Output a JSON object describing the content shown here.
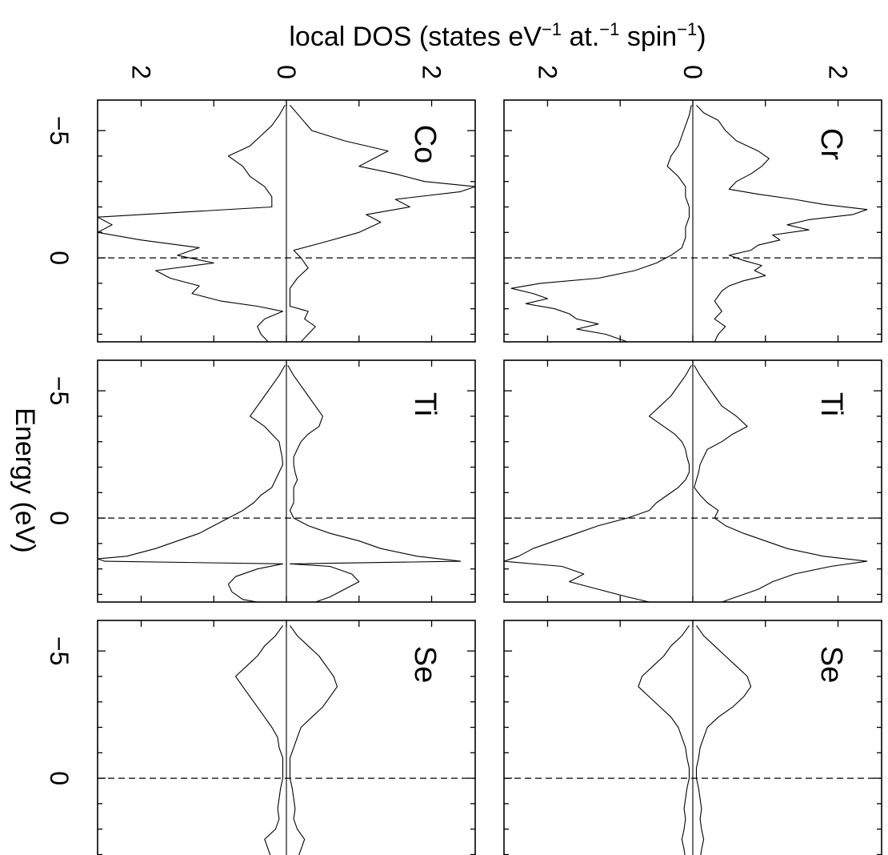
{
  "chart_data": {
    "type": "line",
    "orientation": "rotated-90-cw",
    "title": "",
    "xlabel": "Energy (eV)",
    "ylabel_parts": {
      "t1": "local DOS (states eV",
      "s1": "−1",
      "t2": " at.",
      "s2": "−1",
      "t3": " spin",
      "s3": "−1",
      "t4": ")"
    },
    "x_tick_labels": [
      "−5",
      "0"
    ],
    "y_tick_labels": [
      "2",
      "0",
      "2"
    ],
    "xlim": [
      -6.2,
      3.3
    ],
    "ylim": [
      -2.6,
      2.6
    ],
    "fermi_level": 0,
    "panels": [
      {
        "label": "Cr",
        "grid_row": 0,
        "grid_col": 1,
        "series": [
          {
            "spin": "up",
            "x": [
              -6.0,
              -5.7,
              -5.4,
              -5.0,
              -4.6,
              -4.2,
              -3.9,
              -3.6,
              -3.3,
              -3.0,
              -2.7,
              -2.5,
              -2.3,
              -2.1,
              -1.9,
              -1.7,
              -1.5,
              -1.3,
              -1.1,
              -0.9,
              -0.7,
              -0.5,
              -0.3,
              -0.1,
              0.1,
              0.3,
              0.5,
              0.7,
              0.9,
              1.1,
              1.3,
              1.5,
              1.7,
              1.9,
              2.1,
              2.4,
              2.7,
              3.0,
              3.3
            ],
            "values": [
              0.05,
              0.15,
              0.35,
              0.45,
              0.6,
              0.9,
              1.05,
              0.95,
              0.8,
              0.6,
              0.5,
              0.9,
              1.4,
              1.8,
              2.4,
              2.2,
              1.6,
              1.3,
              1.6,
              1.1,
              1.2,
              0.9,
              0.8,
              0.5,
              0.7,
              0.95,
              0.85,
              1.0,
              0.7,
              0.5,
              0.4,
              0.35,
              0.3,
              0.35,
              0.4,
              0.3,
              0.45,
              0.35,
              0.3
            ]
          },
          {
            "spin": "down",
            "x": [
              -6.0,
              -5.6,
              -5.2,
              -4.8,
              -4.4,
              -4.0,
              -3.6,
              -3.2,
              -2.8,
              -2.4,
              -2.0,
              -1.6,
              -1.2,
              -0.8,
              -0.4,
              -0.1,
              0.2,
              0.5,
              0.8,
              1.0,
              1.2,
              1.4,
              1.6,
              1.8,
              2.0,
              2.2,
              2.4,
              2.6,
              2.8,
              3.0,
              3.3
            ],
            "values": [
              0.02,
              0.05,
              0.1,
              0.15,
              0.2,
              0.3,
              0.35,
              0.2,
              0.1,
              0.1,
              0.05,
              0.05,
              0.1,
              0.1,
              0.15,
              0.3,
              0.5,
              0.8,
              1.3,
              2.1,
              2.5,
              2.2,
              2.0,
              2.3,
              1.9,
              1.7,
              1.6,
              1.3,
              1.6,
              1.2,
              0.9
            ]
          }
        ]
      },
      {
        "label": "Co",
        "grid_row": 0,
        "grid_col": 0,
        "series": [
          {
            "spin": "up",
            "x": [
              -6.0,
              -5.5,
              -5.0,
              -4.6,
              -4.2,
              -3.9,
              -3.6,
              -3.3,
              -3.0,
              -2.8,
              -2.6,
              -2.3,
              -2.0,
              -1.7,
              -1.4,
              -1.0,
              -0.6,
              -0.3,
              0.0,
              0.4,
              0.8,
              1.2,
              1.6,
              1.9,
              2.1,
              2.4,
              2.7,
              3.0,
              3.3
            ],
            "values": [
              0.05,
              0.2,
              0.35,
              0.8,
              1.4,
              1.2,
              1.0,
              1.5,
              1.9,
              2.6,
              2.4,
              1.5,
              1.7,
              1.1,
              1.3,
              1.0,
              0.5,
              0.1,
              0.2,
              0.3,
              0.15,
              0.05,
              0.05,
              0.05,
              0.3,
              0.25,
              0.4,
              0.3,
              0.2
            ]
          },
          {
            "spin": "down",
            "x": [
              -6.0,
              -5.6,
              -5.2,
              -4.8,
              -4.4,
              -4.0,
              -3.6,
              -3.2,
              -2.8,
              -2.4,
              -2.0,
              -1.6,
              -1.3,
              -1.0,
              -0.7,
              -0.4,
              -0.1,
              0.2,
              0.5,
              0.8,
              1.1,
              1.4,
              1.7,
              1.9,
              2.1,
              2.4,
              2.7,
              3.0,
              3.3
            ],
            "values": [
              0.02,
              0.1,
              0.2,
              0.35,
              0.5,
              0.8,
              0.6,
              0.5,
              0.3,
              0.2,
              0.2,
              2.6,
              2.4,
              2.6,
              2.0,
              1.2,
              1.5,
              1.0,
              1.8,
              1.6,
              1.2,
              1.3,
              0.9,
              0.4,
              0.05,
              0.3,
              0.4,
              0.35,
              0.25
            ]
          }
        ]
      },
      {
        "label": "Ti",
        "grid_row": 1,
        "grid_col": 1,
        "series": [
          {
            "spin": "up",
            "x": [
              -6.0,
              -5.6,
              -5.2,
              -4.8,
              -4.4,
              -4.0,
              -3.6,
              -3.3,
              -3.0,
              -2.7,
              -2.4,
              -2.1,
              -1.8,
              -1.5,
              -1.2,
              -0.9,
              -0.6,
              -0.3,
              0.0,
              0.3,
              0.6,
              0.9,
              1.2,
              1.5,
              1.7,
              1.9,
              2.2,
              2.5,
              2.8,
              3.1,
              3.3
            ],
            "values": [
              0.02,
              0.1,
              0.2,
              0.3,
              0.4,
              0.6,
              0.75,
              0.55,
              0.4,
              0.2,
              0.15,
              0.1,
              0.08,
              0.05,
              0.02,
              0.1,
              0.2,
              0.35,
              0.3,
              0.45,
              0.7,
              1.0,
              1.3,
              1.8,
              2.4,
              1.9,
              1.4,
              1.1,
              0.9,
              0.6,
              0.4
            ]
          },
          {
            "spin": "down",
            "x": [
              -6.0,
              -5.6,
              -5.2,
              -4.8,
              -4.4,
              -4.0,
              -3.6,
              -3.3,
              -3.0,
              -2.7,
              -2.4,
              -2.1,
              -1.8,
              -1.5,
              -1.2,
              -0.9,
              -0.6,
              -0.3,
              0.0,
              0.3,
              0.6,
              0.9,
              1.2,
              1.5,
              1.7,
              1.9,
              2.2,
              2.5,
              2.8,
              3.1,
              3.3
            ],
            "values": [
              0.02,
              0.1,
              0.2,
              0.3,
              0.45,
              0.6,
              0.4,
              0.25,
              0.15,
              0.1,
              0.08,
              0.05,
              0.05,
              0.1,
              0.2,
              0.35,
              0.5,
              0.6,
              0.9,
              1.3,
              1.6,
              1.9,
              2.2,
              2.4,
              2.6,
              1.8,
              1.5,
              1.7,
              1.3,
              0.9,
              0.6
            ]
          }
        ]
      },
      {
        "label": "Ti",
        "grid_row": 1,
        "grid_col": 0,
        "series": [
          {
            "spin": "up",
            "x": [
              -6.0,
              -5.6,
              -5.2,
              -4.8,
              -4.4,
              -4.0,
              -3.6,
              -3.3,
              -3.0,
              -2.7,
              -2.4,
              -2.1,
              -1.8,
              -1.5,
              -1.2,
              -0.9,
              -0.6,
              -0.3,
              0.0,
              0.3,
              0.6,
              0.9,
              1.2,
              1.5,
              1.7,
              1.8,
              1.9,
              2.2,
              2.5,
              2.8,
              3.1,
              3.3
            ],
            "values": [
              0.02,
              0.1,
              0.2,
              0.3,
              0.4,
              0.5,
              0.45,
              0.3,
              0.2,
              0.15,
              0.1,
              0.1,
              0.12,
              0.15,
              0.1,
              0.1,
              0.1,
              0.05,
              0.1,
              0.3,
              0.6,
              1.0,
              1.3,
              1.8,
              2.4,
              0.05,
              0.6,
              0.9,
              1.0,
              0.8,
              0.6,
              0.4
            ]
          },
          {
            "spin": "down",
            "x": [
              -6.0,
              -5.6,
              -5.2,
              -4.8,
              -4.4,
              -4.0,
              -3.6,
              -3.3,
              -3.0,
              -2.7,
              -2.4,
              -2.1,
              -1.8,
              -1.5,
              -1.2,
              -0.9,
              -0.6,
              -0.3,
              0.0,
              0.3,
              0.6,
              0.9,
              1.2,
              1.5,
              1.6,
              1.7,
              1.8,
              2.0,
              2.3,
              2.6,
              2.9,
              3.2,
              3.3
            ],
            "values": [
              0.02,
              0.1,
              0.2,
              0.3,
              0.4,
              0.5,
              0.3,
              0.2,
              0.1,
              0.08,
              0.06,
              0.05,
              0.1,
              0.15,
              0.2,
              0.35,
              0.45,
              0.6,
              0.8,
              1.0,
              1.2,
              1.5,
              1.8,
              2.2,
              2.6,
              2.5,
              0.05,
              0.4,
              0.7,
              0.8,
              0.75,
              0.6,
              0.4
            ]
          }
        ]
      },
      {
        "label": "Se",
        "grid_row": 2,
        "grid_col": 1,
        "series": [
          {
            "spin": "up",
            "x": [
              -6.0,
              -5.6,
              -5.2,
              -4.8,
              -4.4,
              -4.0,
              -3.6,
              -3.2,
              -2.8,
              -2.4,
              -2.0,
              -1.6,
              -1.2,
              -0.8,
              -0.4,
              0.0,
              0.4,
              0.8,
              1.2,
              1.6,
              2.0,
              2.4,
              2.8,
              3.2,
              3.3
            ],
            "values": [
              0.05,
              0.15,
              0.3,
              0.45,
              0.6,
              0.75,
              0.8,
              0.7,
              0.55,
              0.35,
              0.2,
              0.15,
              0.1,
              0.08,
              0.05,
              0.05,
              0.08,
              0.1,
              0.12,
              0.1,
              0.12,
              0.15,
              0.12,
              0.1,
              0.1
            ]
          },
          {
            "spin": "down",
            "x": [
              -6.0,
              -5.6,
              -5.2,
              -4.8,
              -4.4,
              -4.0,
              -3.6,
              -3.2,
              -2.8,
              -2.4,
              -2.0,
              -1.6,
              -1.2,
              -0.8,
              -0.4,
              0.0,
              0.4,
              0.8,
              1.2,
              1.6,
              2.0,
              2.4,
              2.8,
              3.2,
              3.3
            ],
            "values": [
              0.05,
              0.15,
              0.3,
              0.4,
              0.55,
              0.7,
              0.75,
              0.6,
              0.45,
              0.3,
              0.2,
              0.15,
              0.1,
              0.08,
              0.05,
              0.05,
              0.08,
              0.1,
              0.12,
              0.1,
              0.12,
              0.15,
              0.12,
              0.1,
              0.1
            ]
          }
        ]
      },
      {
        "label": "Se",
        "grid_row": 2,
        "grid_col": 0,
        "series": [
          {
            "spin": "up",
            "x": [
              -6.0,
              -5.6,
              -5.2,
              -4.8,
              -4.4,
              -4.0,
              -3.6,
              -3.2,
              -2.8,
              -2.4,
              -2.0,
              -1.6,
              -1.2,
              -0.8,
              -0.4,
              0.0,
              0.4,
              0.8,
              1.2,
              1.6,
              2.0,
              2.4,
              2.8,
              3.2,
              3.3
            ],
            "values": [
              0.05,
              0.15,
              0.3,
              0.45,
              0.55,
              0.65,
              0.7,
              0.6,
              0.5,
              0.35,
              0.2,
              0.15,
              0.1,
              0.05,
              0.05,
              0.05,
              0.08,
              0.1,
              0.12,
              0.1,
              0.15,
              0.25,
              0.2,
              0.15,
              0.1
            ]
          },
          {
            "spin": "down",
            "x": [
              -6.0,
              -5.6,
              -5.2,
              -4.8,
              -4.4,
              -4.0,
              -3.6,
              -3.2,
              -2.8,
              -2.4,
              -2.0,
              -1.6,
              -1.2,
              -0.8,
              -0.4,
              0.0,
              0.4,
              0.8,
              1.2,
              1.6,
              2.0,
              2.4,
              2.8,
              3.2,
              3.3
            ],
            "values": [
              0.05,
              0.15,
              0.3,
              0.4,
              0.55,
              0.7,
              0.6,
              0.5,
              0.4,
              0.3,
              0.2,
              0.12,
              0.1,
              0.05,
              0.05,
              0.05,
              0.08,
              0.1,
              0.12,
              0.1,
              0.15,
              0.3,
              0.25,
              0.2,
              0.1
            ]
          }
        ]
      }
    ]
  }
}
